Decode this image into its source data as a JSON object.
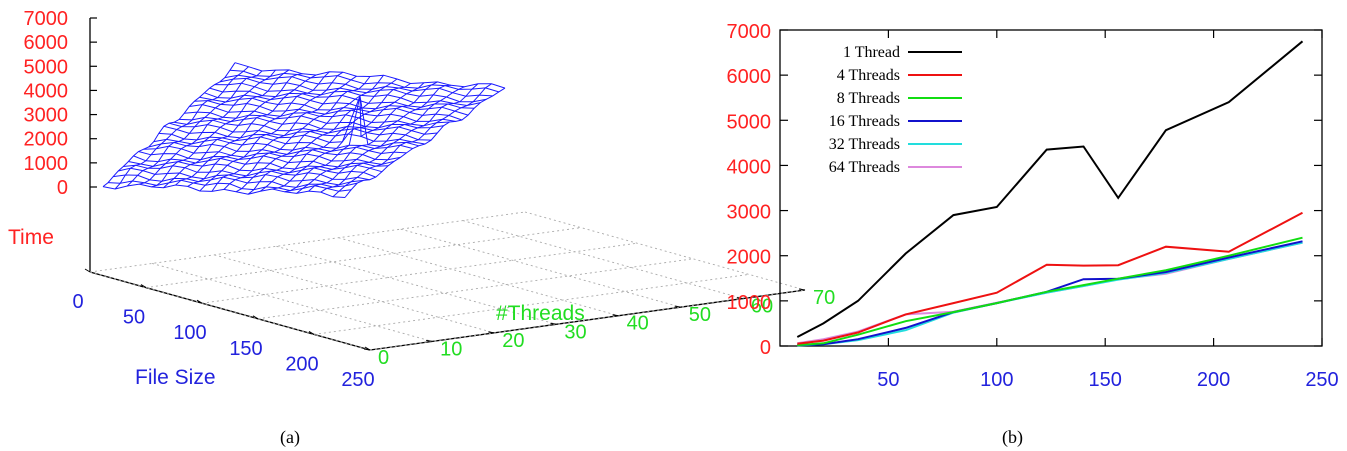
{
  "chart_data": [
    {
      "panel": "(a)",
      "type": "surface3d",
      "zlabel": "Time",
      "xlabel": "File Size",
      "ylabel": "#Threads",
      "z_ticks": [
        "0",
        "1000",
        "2000",
        "3000",
        "4000",
        "5000",
        "6000",
        "7000"
      ],
      "x_ticks": [
        "0",
        "50",
        "100",
        "150",
        "200",
        "250"
      ],
      "y_ticks": [
        "0",
        "10",
        "20",
        "30",
        "40",
        "50",
        "60",
        "70"
      ],
      "zlim": [
        0,
        7000
      ],
      "xlim": [
        0,
        250
      ],
      "ylim": [
        0,
        70
      ],
      "surface_color": "#1a1aff"
    },
    {
      "panel": "(b)",
      "type": "line",
      "ylim": [
        0,
        7000
      ],
      "xlim": [
        0,
        250
      ],
      "y_ticks": [
        "0",
        "1000",
        "2000",
        "3000",
        "4000",
        "5000",
        "6000",
        "7000"
      ],
      "x_ticks": [
        "50",
        "100",
        "150",
        "200",
        "250"
      ],
      "legend_position": "top-left",
      "x": [
        8,
        20,
        36,
        58,
        80,
        100,
        123,
        140,
        156,
        178,
        207,
        241
      ],
      "series": [
        {
          "name": "1 Thread",
          "color": "#000000",
          "values": [
            200,
            500,
            1000,
            2050,
            2900,
            3080,
            4350,
            4420,
            3280,
            4780,
            5400,
            6750
          ]
        },
        {
          "name": "4 Threads",
          "color": "#ee1111",
          "values": [
            50,
            120,
            300,
            700,
            950,
            1180,
            1800,
            1780,
            1790,
            2200,
            2090,
            2950
          ]
        },
        {
          "name": "8 Threads",
          "color": "#11dd11",
          "values": [
            20,
            60,
            250,
            550,
            750,
            950,
            1200,
            1350,
            1490,
            1680,
            2000,
            2400
          ]
        },
        {
          "name": "16 Threads",
          "color": "#1111cc",
          "values": [
            20,
            40,
            150,
            400,
            750,
            950,
            1200,
            1480,
            1490,
            1640,
            1960,
            2320
          ]
        },
        {
          "name": "32 Threads",
          "color": "#22dddd",
          "values": [
            10,
            40,
            130,
            350,
            740,
            950,
            1180,
            1330,
            1470,
            1620,
            1930,
            2290
          ]
        },
        {
          "name": "64 Threads",
          "color": "#dd88dd",
          "values": [
            60,
            150,
            320,
            700,
            760,
            960,
            1180,
            1330,
            1480,
            1600,
            1930,
            2290
          ]
        }
      ]
    }
  ],
  "captions": {
    "a": "(a)",
    "b": "(b)"
  }
}
